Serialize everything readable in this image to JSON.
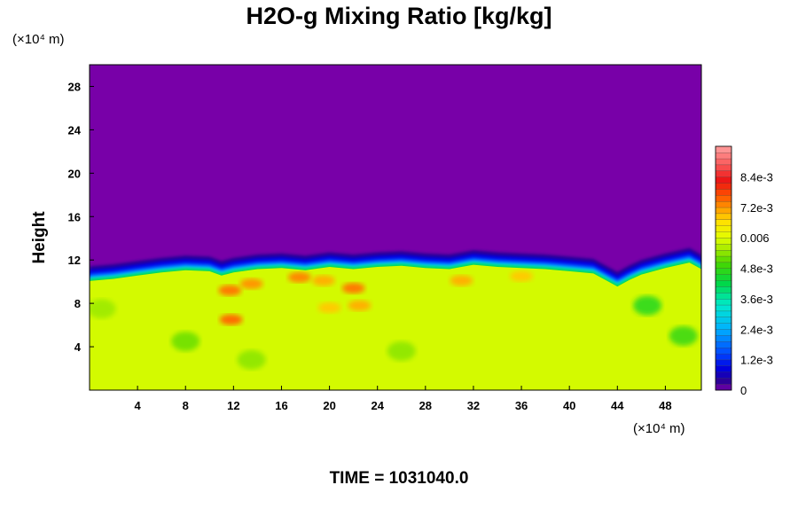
{
  "chart_data": {
    "type": "heatmap",
    "title": "H2O-g Mixing Ratio [kg/kg]",
    "ylabel": "Height",
    "xunit": "(×10⁴ m)",
    "yunit": "(×10⁴ m)",
    "xlim": [
      0,
      51
    ],
    "ylim": [
      0,
      30
    ],
    "xticks": [
      "4",
      "8",
      "12",
      "16",
      "20",
      "24",
      "28",
      "32",
      "36",
      "40",
      "44",
      "48"
    ],
    "xtick_values": [
      4,
      8,
      12,
      16,
      20,
      24,
      28,
      32,
      36,
      40,
      44,
      48
    ],
    "yticks": [
      "4",
      "8",
      "12",
      "16",
      "20",
      "24",
      "28"
    ],
    "ytick_values": [
      4,
      8,
      12,
      16,
      20,
      24,
      28
    ],
    "colorbar": {
      "range": [
        0,
        0.0096
      ],
      "labels": [
        "0",
        "1.2e-3",
        "2.4e-3",
        "3.6e-3",
        "4.8e-3",
        "0.006",
        "7.2e-3",
        "8.4e-3"
      ],
      "label_values": [
        0,
        0.0012,
        0.0024,
        0.0036,
        0.0048,
        0.006,
        0.0072,
        0.0084
      ]
    },
    "field": {
      "upper_value": 0.0,
      "lower_value": 0.0059,
      "interface_x": [
        0,
        2,
        4,
        6,
        8,
        10,
        11,
        12,
        14,
        16,
        18,
        20,
        22,
        24,
        26,
        28,
        30,
        32,
        34,
        36,
        38,
        40,
        42,
        43,
        44,
        45,
        46,
        48,
        50,
        51
      ],
      "interface_height": [
        10.1,
        10.3,
        10.6,
        10.9,
        11.1,
        11.0,
        10.6,
        10.9,
        11.2,
        11.3,
        11.1,
        11.4,
        11.2,
        11.4,
        11.5,
        11.3,
        11.2,
        11.6,
        11.4,
        11.3,
        11.2,
        11.0,
        10.8,
        10.2,
        9.6,
        10.2,
        10.7,
        11.3,
        11.8,
        11.2
      ],
      "moist_patches": [
        {
          "x": 11.7,
          "y": 9.2,
          "value": 0.0074
        },
        {
          "x": 13.5,
          "y": 9.8,
          "value": 0.0072
        },
        {
          "x": 17.5,
          "y": 10.4,
          "value": 0.0073
        },
        {
          "x": 19.5,
          "y": 10.1,
          "value": 0.007
        },
        {
          "x": 22.0,
          "y": 9.4,
          "value": 0.0074
        },
        {
          "x": 22.5,
          "y": 7.8,
          "value": 0.007
        },
        {
          "x": 20.0,
          "y": 7.6,
          "value": 0.0068
        },
        {
          "x": 11.8,
          "y": 6.5,
          "value": 0.0075
        },
        {
          "x": 31.0,
          "y": 10.1,
          "value": 0.007
        },
        {
          "x": 36.0,
          "y": 10.5,
          "value": 0.0068
        }
      ],
      "dry_patches": [
        {
          "x": 8.0,
          "y": 4.5,
          "value": 0.0052
        },
        {
          "x": 13.5,
          "y": 2.8,
          "value": 0.0054
        },
        {
          "x": 26.0,
          "y": 3.6,
          "value": 0.0054
        },
        {
          "x": 46.5,
          "y": 7.8,
          "value": 0.0046
        },
        {
          "x": 49.5,
          "y": 5.0,
          "value": 0.0048
        },
        {
          "x": 1.0,
          "y": 7.5,
          "value": 0.0055
        }
      ]
    }
  },
  "footer": {
    "time_label": "TIME = 1031040.0"
  }
}
